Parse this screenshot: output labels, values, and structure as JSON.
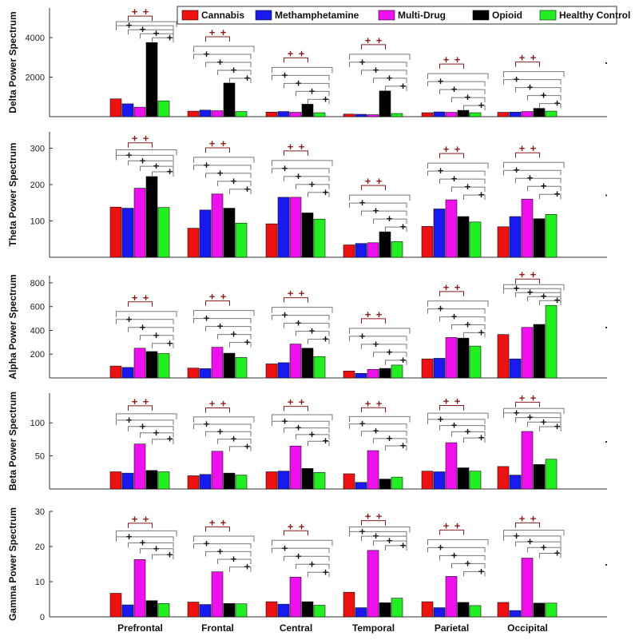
{
  "chart_data": {
    "type": "bar",
    "categories": [
      "Prefrontal",
      "Frontal",
      "Central",
      "Temporal",
      "Parietal",
      "Occipital"
    ],
    "legend": {
      "position": "top-right",
      "entries": [
        "Cannabis",
        "Methamphetamine",
        "Multi-Drug",
        "Opioid",
        "Healthy Control"
      ]
    },
    "colors": [
      "#ee1111",
      "#1a1aee",
      "#ee11ee",
      "#000000",
      "#22ee22"
    ],
    "panels": [
      {
        "ylabel": "Delta Power Spectrum",
        "ylim": [
          0,
          5500
        ],
        "yticks": [
          2000,
          4000
        ],
        "values": [
          [
            900,
            650,
            480,
            3750,
            800
          ],
          [
            280,
            330,
            300,
            1700,
            260
          ],
          [
            230,
            260,
            220,
            630,
            200
          ],
          [
            130,
            120,
            100,
            1300,
            160
          ],
          [
            200,
            240,
            220,
            320,
            200
          ],
          [
            220,
            230,
            260,
            420,
            280
          ]
        ]
      },
      {
        "ylabel": "Theta Power Spectrum",
        "ylim": [
          0,
          345
        ],
        "yticks": [
          100,
          200,
          300
        ],
        "values": [
          [
            138,
            135,
            190,
            222,
            137
          ],
          [
            80,
            130,
            174,
            135,
            94
          ],
          [
            92,
            165,
            165,
            122,
            105
          ],
          [
            34,
            38,
            40,
            70,
            43
          ],
          [
            85,
            133,
            158,
            112,
            97
          ],
          [
            84,
            112,
            160,
            106,
            118
          ]
        ]
      },
      {
        "ylabel": "Alpha Power Spectrum",
        "ylim": [
          0,
          860
        ],
        "yticks": [
          200,
          400,
          600,
          800
        ],
        "values": [
          [
            100,
            88,
            250,
            222,
            205
          ],
          [
            83,
            78,
            258,
            208,
            172
          ],
          [
            118,
            128,
            285,
            250,
            180
          ],
          [
            58,
            38,
            72,
            80,
            108
          ],
          [
            160,
            165,
            340,
            335,
            268
          ],
          [
            365,
            160,
            425,
            450,
            610
          ]
        ]
      },
      {
        "ylabel": "Beta Power Spectrum",
        "ylim": [
          0,
          145
        ],
        "yticks": [
          50,
          100
        ],
        "values": [
          [
            26,
            24,
            68,
            28,
            26
          ],
          [
            20,
            22,
            57,
            24,
            21
          ],
          [
            26,
            27,
            65,
            31,
            25
          ],
          [
            23,
            10,
            58,
            15,
            18
          ],
          [
            27,
            26,
            70,
            32,
            27
          ],
          [
            34,
            21,
            87,
            37,
            45
          ]
        ]
      },
      {
        "ylabel": "Gamma Power Spectrum",
        "ylim": [
          0,
          30
        ],
        "yticks": [
          0,
          10,
          20,
          30
        ],
        "values": [
          [
            6.7,
            3.4,
            16.3,
            4.6,
            3.8
          ],
          [
            4.2,
            3.5,
            12.8,
            3.8,
            3.7
          ],
          [
            4.3,
            3.6,
            11.3,
            4.3,
            3.3
          ],
          [
            7.0,
            2.6,
            18.9,
            4.0,
            5.3
          ],
          [
            4.3,
            2.6,
            11.5,
            4.1,
            3.2
          ],
          [
            4.1,
            1.8,
            16.7,
            3.9,
            3.9
          ]
        ]
      }
    ],
    "annotations": {
      "significance_marker": "+",
      "brackets_per_group": 5
    }
  }
}
